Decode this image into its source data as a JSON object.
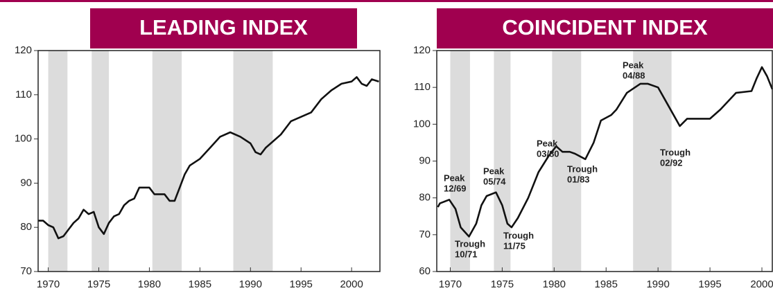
{
  "chart_data": [
    {
      "type": "line",
      "title": "LEADING INDEX",
      "color": "#111111",
      "shade_color": "#dcdcdc",
      "x": [
        1969,
        1969.5,
        1970,
        1970.5,
        1971,
        1971.5,
        1972,
        1972.5,
        1973,
        1973.5,
        1974,
        1974.5,
        1975,
        1975.5,
        1976,
        1976.5,
        1977,
        1977.5,
        1978,
        1978.5,
        1979,
        1979.5,
        1980,
        1980.5,
        1981,
        1981.5,
        1982,
        1982.5,
        1983,
        1983.5,
        1984,
        1985,
        1986,
        1987,
        1988,
        1989,
        1990,
        1990.5,
        1991,
        1991.5,
        1992,
        1993,
        1994,
        1995,
        1996,
        1997,
        1998,
        1999,
        2000,
        2000.5,
        2001,
        2001.5,
        2002,
        2002.7
      ],
      "values": [
        81.5,
        81.5,
        80.5,
        80,
        77.5,
        78,
        79.5,
        81,
        82,
        84,
        83,
        83.5,
        80,
        78.5,
        81,
        82.5,
        83,
        85,
        86,
        86.5,
        89,
        89,
        89,
        87.5,
        87.5,
        87.5,
        86,
        86,
        89,
        92,
        94,
        95.5,
        98,
        100.5,
        101.5,
        100.5,
        99,
        97,
        96.5,
        98,
        99,
        101,
        104,
        105,
        106,
        109,
        111,
        112.5,
        113,
        114,
        112.5,
        112,
        113.5,
        113
      ],
      "xlim": [
        1969,
        2002.8
      ],
      "ylim": [
        70,
        120
      ],
      "xticks": [
        1970,
        1975,
        1980,
        1985,
        1990,
        1995,
        2000
      ],
      "yticks": [
        70,
        80,
        90,
        100,
        110,
        120
      ],
      "shaded_periods": [
        [
          1970,
          1971.9
        ],
        [
          1974.3,
          1976
        ],
        [
          1980.3,
          1983.2
        ],
        [
          1988.3,
          1992.2
        ]
      ],
      "annotations": []
    },
    {
      "type": "line",
      "title": "COINCIDENT INDEX",
      "color": "#111111",
      "shade_color": "#dcdcdc",
      "x": [
        1968.8,
        1969,
        1969.9,
        1970.5,
        1971,
        1971.8,
        1972.5,
        1973,
        1973.5,
        1974.4,
        1975,
        1975.5,
        1975.9,
        1976.5,
        1977.5,
        1978.5,
        1979.5,
        1980.2,
        1980.8,
        1981.5,
        1982,
        1983,
        1983.8,
        1984.5,
        1985.5,
        1986,
        1987,
        1988.3,
        1989,
        1990,
        1991,
        1992.1,
        1992.8,
        1994,
        1995,
        1996,
        1997.5,
        1999,
        1999.5,
        2000,
        2000.5,
        2001
      ],
      "values": [
        77.5,
        78.5,
        79.5,
        77,
        72,
        69.5,
        73,
        78,
        80.5,
        81.5,
        78,
        73,
        72,
        74.5,
        80,
        87,
        91.5,
        94,
        92.5,
        92.5,
        92,
        90.5,
        95,
        101,
        102.5,
        104,
        108.5,
        111,
        111,
        110,
        105,
        99.5,
        101.5,
        101.5,
        101.5,
        104,
        108.5,
        109,
        112.5,
        115.5,
        113,
        109.5
      ],
      "xlim": [
        1968.7,
        2001
      ],
      "ylim": [
        60,
        120
      ],
      "xticks": [
        1970,
        1975,
        1980,
        1985,
        1990,
        1995,
        2000
      ],
      "yticks": [
        60,
        70,
        80,
        90,
        100,
        110,
        120
      ],
      "shaded_periods": [
        [
          1970,
          1971.9
        ],
        [
          1974.2,
          1975.8
        ],
        [
          1979.8,
          1982.6
        ],
        [
          1987.6,
          1991.3
        ]
      ],
      "annotations": [
        {
          "label": "Peak",
          "date": "12/69"
        },
        {
          "label": "Trough",
          "date": "10/71"
        },
        {
          "label": "Peak",
          "date": "05/74"
        },
        {
          "label": "Trough",
          "date": "11/75"
        },
        {
          "label": "Peak",
          "date": "03/80"
        },
        {
          "label": "Trough",
          "date": "01/83"
        },
        {
          "label": "Peak",
          "date": "04/88"
        },
        {
          "label": "Trough",
          "date": "02/92"
        }
      ]
    }
  ]
}
